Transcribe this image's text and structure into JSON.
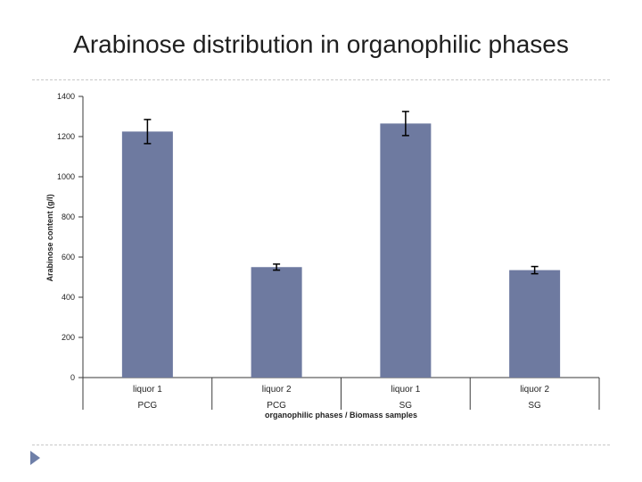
{
  "slide": {
    "title": "Arabinose distribution in organophilic phases"
  },
  "colors": {
    "bar": "#6e7aa0",
    "axis": "#3a3a3a",
    "error_bar": "#000000"
  },
  "chart_data": {
    "type": "bar",
    "title": "",
    "xlabel": "organophilic phases / Biomass samples",
    "ylabel": "Arabinose content (g/l)",
    "ylim": [
      0,
      1400
    ],
    "yticks": [
      0,
      200,
      400,
      600,
      800,
      1000,
      1200,
      1400
    ],
    "grid": false,
    "legend": "none",
    "categories": [
      {
        "line1": "liquor 1",
        "line2": "PCG"
      },
      {
        "line1": "liquor 2",
        "line2": "PCG"
      },
      {
        "line1": "liquor 1",
        "line2": "SG"
      },
      {
        "line1": "liquor 2",
        "line2": "SG"
      }
    ],
    "values": [
      1225,
      550,
      1265,
      535
    ],
    "errors": [
      60,
      15,
      60,
      18
    ]
  }
}
